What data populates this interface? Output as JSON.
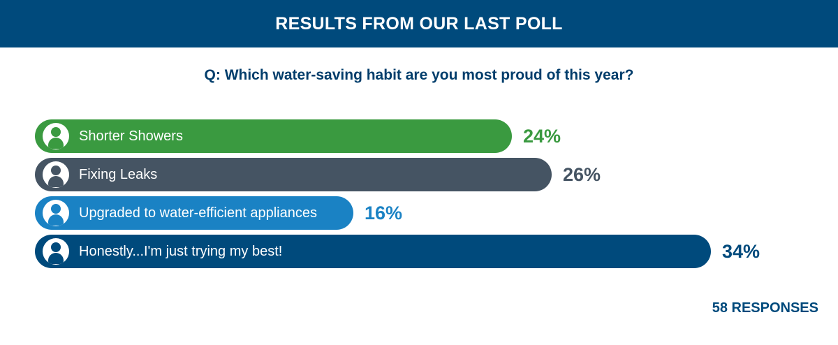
{
  "header": {
    "title": "RESULTS FROM OUR LAST POLL"
  },
  "question": "Q: Which water-saving habit are you most proud of this year?",
  "footer": {
    "responses": "58 RESPONSES"
  },
  "chart_data": {
    "type": "bar",
    "orientation": "horizontal",
    "categories": [
      "Shorter Showers",
      "Fixing Leaks",
      "Upgraded to water-efficient appliances",
      "Honestly...I'm just trying my best!"
    ],
    "values": [
      24,
      26,
      16,
      34
    ],
    "value_labels": [
      "24%",
      "26%",
      "16%",
      "34%"
    ],
    "colors": [
      "#3a9a40",
      "#455463",
      "#1a82c4",
      "#004a7c"
    ],
    "icon": "person-icon",
    "xlim": [
      0,
      34
    ],
    "grid": false,
    "legend": "none"
  }
}
